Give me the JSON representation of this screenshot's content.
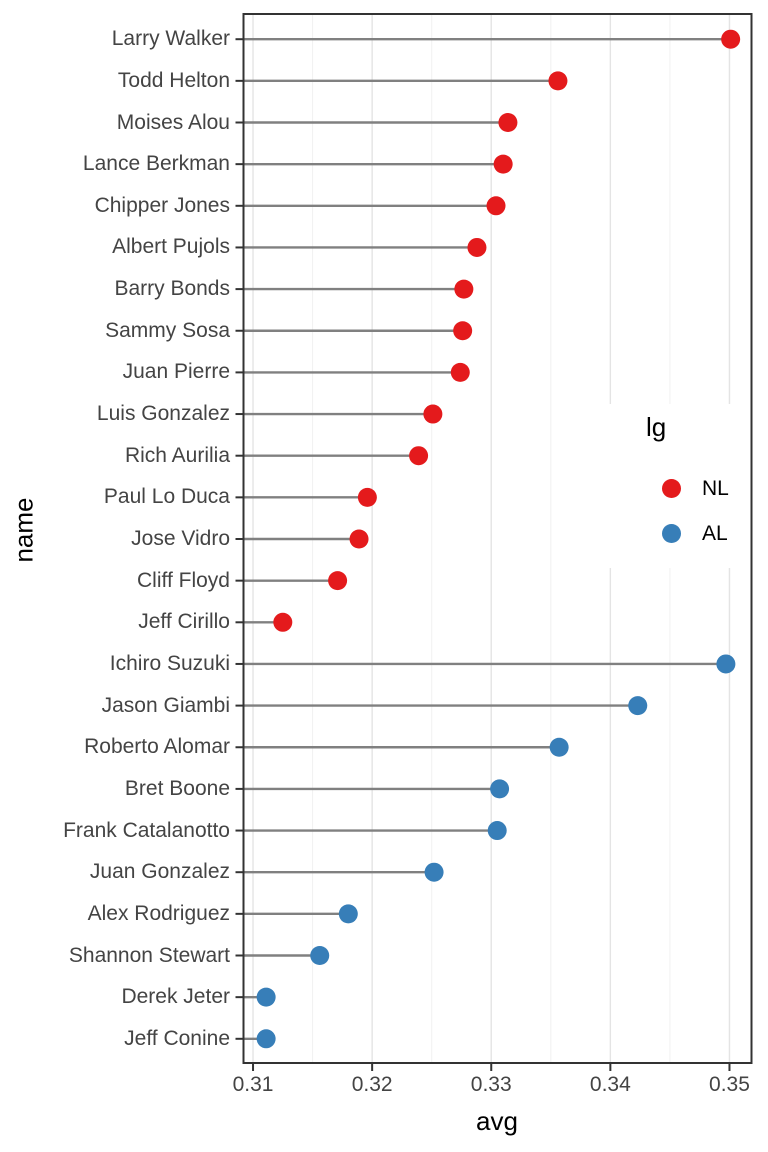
{
  "chart_data": {
    "type": "lollipop",
    "title": "",
    "xlabel": "avg",
    "ylabel": "name",
    "xlim": [
      0.3092,
      0.35185
    ],
    "x_major_values": [
      0.31,
      0.32,
      0.33,
      0.34,
      0.35
    ],
    "x_tick_labels": [
      "0.31",
      "0.32",
      "0.33",
      "0.34",
      "0.35"
    ],
    "x_minor_values": [
      0.315,
      0.325,
      0.335,
      0.345
    ],
    "grid": "vertical-only",
    "legend": {
      "title": "lg",
      "position": "inside-right",
      "entries": [
        {
          "label": "NL",
          "color": "#E41A1C"
        },
        {
          "label": "AL",
          "color": "#377EB8"
        }
      ]
    },
    "colors": {
      "NL": "#E41A1C",
      "AL": "#377EB8"
    },
    "stem_color": "#808080",
    "panel": {
      "background": "#FFFFFF",
      "border_color": "#333333",
      "grid_major_color": "#E4E4E4",
      "grid_minor_color": "#F1F1F1"
    },
    "text_color": "#444444",
    "points": [
      {
        "name": "Larry Walker",
        "lg": "NL",
        "avg": 0.3501
      },
      {
        "name": "Todd Helton",
        "lg": "NL",
        "avg": 0.3356
      },
      {
        "name": "Moises Alou",
        "lg": "NL",
        "avg": 0.3314
      },
      {
        "name": "Lance Berkman",
        "lg": "NL",
        "avg": 0.331
      },
      {
        "name": "Chipper Jones",
        "lg": "NL",
        "avg": 0.3304
      },
      {
        "name": "Albert Pujols",
        "lg": "NL",
        "avg": 0.3288
      },
      {
        "name": "Barry Bonds",
        "lg": "NL",
        "avg": 0.3277
      },
      {
        "name": "Sammy Sosa",
        "lg": "NL",
        "avg": 0.3276
      },
      {
        "name": "Juan Pierre",
        "lg": "NL",
        "avg": 0.3274
      },
      {
        "name": "Luis Gonzalez",
        "lg": "NL",
        "avg": 0.3251
      },
      {
        "name": "Rich Aurilia",
        "lg": "NL",
        "avg": 0.3239
      },
      {
        "name": "Paul Lo Duca",
        "lg": "NL",
        "avg": 0.3196
      },
      {
        "name": "Jose Vidro",
        "lg": "NL",
        "avg": 0.3189
      },
      {
        "name": "Cliff Floyd",
        "lg": "NL",
        "avg": 0.3171
      },
      {
        "name": "Jeff Cirillo",
        "lg": "NL",
        "avg": 0.3125
      },
      {
        "name": "Ichiro Suzuki",
        "lg": "AL",
        "avg": 0.3497
      },
      {
        "name": "Jason Giambi",
        "lg": "AL",
        "avg": 0.3423
      },
      {
        "name": "Roberto Alomar",
        "lg": "AL",
        "avg": 0.3357
      },
      {
        "name": "Bret Boone",
        "lg": "AL",
        "avg": 0.3307
      },
      {
        "name": "Frank Catalanotto",
        "lg": "AL",
        "avg": 0.3305
      },
      {
        "name": "Juan Gonzalez",
        "lg": "AL",
        "avg": 0.3252
      },
      {
        "name": "Alex Rodriguez",
        "lg": "AL",
        "avg": 0.318
      },
      {
        "name": "Shannon Stewart",
        "lg": "AL",
        "avg": 0.3156
      },
      {
        "name": "Derek Jeter",
        "lg": "AL",
        "avg": 0.3111
      },
      {
        "name": "Jeff Conine",
        "lg": "AL",
        "avg": 0.3111
      }
    ]
  }
}
